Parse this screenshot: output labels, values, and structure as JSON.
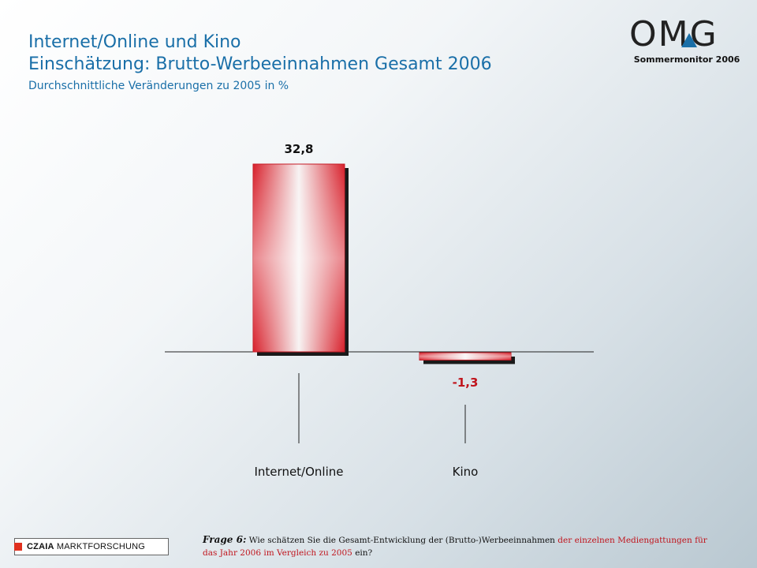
{
  "header": {
    "title_line1": "Internet/Online und Kino",
    "title_line2": "Einschätzung: Brutto-Werbeeinnahmen Gesamt 2006",
    "subtitle": "Durchschnittliche Veränderungen zu 2005 in %"
  },
  "logo": {
    "text": "OMG",
    "caption": "Sommermonitor 2006"
  },
  "chart_data": {
    "type": "bar",
    "categories": [
      "Internet/Online",
      "Kino"
    ],
    "values": [
      32.8,
      -1.3
    ],
    "value_labels": [
      "32,8",
      "-1,3"
    ],
    "title": "",
    "xlabel": "",
    "ylabel": "",
    "ylim": [
      -2,
      35
    ],
    "grid": false,
    "colors": {
      "bar": "#d8212c",
      "positive_label": "#111111",
      "negative_label": "#c0141c"
    }
  },
  "footer": {
    "badge_brand": "CZAIA",
    "badge_rest": " MARKTFORSCHUNG",
    "question_label": "Frage 6:",
    "question_part1": " Wie schätzen Sie die Gesamt-Entwicklung der (Brutto-)Werbeeinnahmen ",
    "question_red1": "der einzelnen Mediengattungen für das Jahr 2006 im Vergleich zu 2005",
    "question_part2": " ein?"
  }
}
